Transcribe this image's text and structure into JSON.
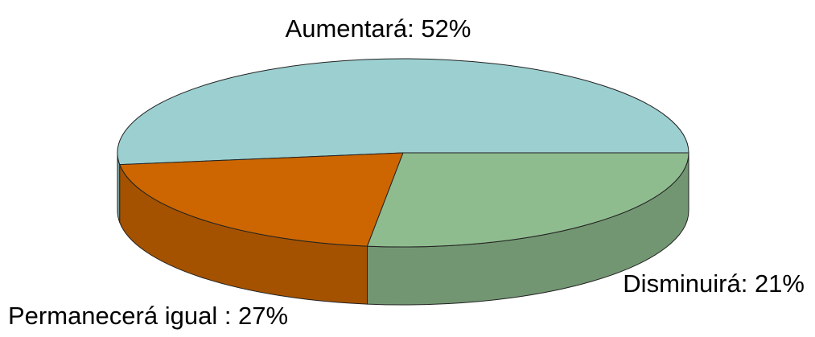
{
  "chart_data": {
    "type": "pie3d",
    "values": [
      52,
      21,
      27
    ],
    "value_labels": [
      "Aumentará: 52%",
      "Disminuirá: 21%",
      "Permanecerá igual : 27%"
    ],
    "colors": [
      "#9ccfd0",
      "#cd6600",
      "#8fbc8f"
    ],
    "side_colors": [
      "#7ca6a7",
      "#a45200",
      "#729672"
    ]
  }
}
